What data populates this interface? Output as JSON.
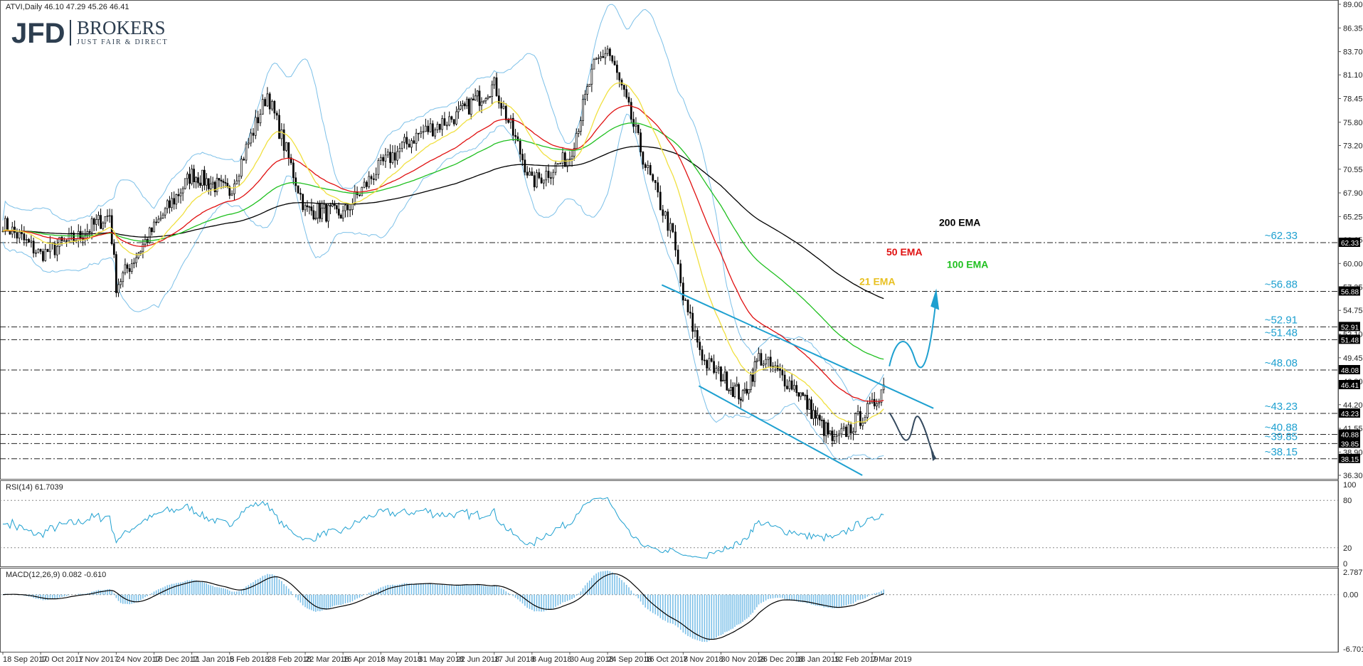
{
  "header": {
    "main": "ATVI,Daily  46.10 47.29 45.26 46.41",
    "rsi": "RSI(14) 61.7039",
    "macd": "MACD(12,26,9) 0.082 -0.610"
  },
  "logo": {
    "jfd": "JFD",
    "brokers": "BROKERS",
    "tagline": "JUST FAIR & DIRECT"
  },
  "colors": {
    "up_candle": "#ffffff",
    "down_candle": "#000000",
    "ema21": "#f0e040",
    "ema50": "#e01010",
    "ema100": "#20c020",
    "ema200": "#000000",
    "bollinger": "#7cc0e8",
    "channel": "#1ea0d0",
    "projection_up": "#1ea0d0",
    "projection_down": "#34495e",
    "macd_hist": "#7cc0e8"
  },
  "chart_data": [
    {
      "type": "candlestick",
      "ylim": [
        36.3,
        89.0
      ],
      "y_ticks": [
        "89.00",
        "86.35",
        "83.70",
        "81.10",
        "78.45",
        "75.80",
        "73.20",
        "70.55",
        "67.90",
        "65.25",
        "62.65",
        "60.00",
        "57.35",
        "54.75",
        "52.10",
        "49.45",
        "46.80",
        "44.20",
        "41.55",
        "38.90",
        "36.30"
      ],
      "x_dates": [
        "18 Sep 2017",
        "10 Oct 2017",
        "1 Nov 2017",
        "24 Nov 2017",
        "18 Dec 2017",
        "11 Jan 2018",
        "5 Feb 2018",
        "28 Feb 2018",
        "22 Mar 2018",
        "16 Apr 2018",
        "8 May 2018",
        "31 May 2018",
        "22 Jun 2018",
        "17 Jul 2018",
        "8 Aug 2018",
        "30 Aug 2018",
        "24 Sep 2018",
        "16 Oct 2018",
        "7 Nov 2018",
        "30 Nov 2018",
        "26 Dec 2018",
        "18 Jan 2019",
        "12 Feb 2019",
        "7 Mar 2019"
      ],
      "price_path": [
        {
          "date": "18 Sep 2017",
          "close": 64.5
        },
        {
          "date": "10 Oct 2017",
          "close": 61.0
        },
        {
          "date": "1 Nov 2017",
          "close": 63.0
        },
        {
          "date": "20 Nov 2017",
          "close": 65.5
        },
        {
          "date": "24 Nov 2017",
          "close": 57.5
        },
        {
          "date": "18 Dec 2017",
          "close": 64.0
        },
        {
          "date": "11 Jan 2018",
          "close": 70.0
        },
        {
          "date": "5 Feb 2018",
          "close": 68.0
        },
        {
          "date": "28 Feb 2018",
          "close": 79.0
        },
        {
          "date": "22 Mar 2018",
          "close": 66.0
        },
        {
          "date": "16 Apr 2018",
          "close": 65.5
        },
        {
          "date": "8 May 2018",
          "close": 71.0
        },
        {
          "date": "31 May 2018",
          "close": 74.5
        },
        {
          "date": "22 Jun 2018",
          "close": 76.5
        },
        {
          "date": "17 Jul 2018",
          "close": 80.0
        },
        {
          "date": "8 Aug 2018",
          "close": 69.0
        },
        {
          "date": "30 Aug 2018",
          "close": 72.0
        },
        {
          "date": "15 Sep 2018",
          "close": 82.0
        },
        {
          "date": "24 Sep 2018",
          "close": 84.0
        },
        {
          "date": "5 Oct 2018",
          "close": 78.0
        },
        {
          "date": "16 Oct 2018",
          "close": 71.0
        },
        {
          "date": "1 Nov 2018",
          "close": 63.0
        },
        {
          "date": "7 Nov 2018",
          "close": 56.0
        },
        {
          "date": "20 Nov 2018",
          "close": 49.0
        },
        {
          "date": "30 Nov 2018",
          "close": 47.5
        },
        {
          "date": "15 Dec 2018",
          "close": 45.0
        },
        {
          "date": "26 Dec 2018",
          "close": 49.5
        },
        {
          "date": "18 Jan 2019",
          "close": 46.0
        },
        {
          "date": "1 Feb 2019",
          "close": 42.5
        },
        {
          "date": "12 Feb 2019",
          "close": 40.0
        },
        {
          "date": "7 Mar 2019",
          "close": 44.0
        },
        {
          "date": "14 Mar 2019",
          "close": 46.41
        }
      ],
      "levels": [
        {
          "label": "~62.33",
          "value": 62.33,
          "box": "62.33"
        },
        {
          "label": "~56.88",
          "value": 56.88,
          "box": "56.88"
        },
        {
          "label": "~52.91",
          "value": 52.91,
          "box": "52.91"
        },
        {
          "label": "~51.48",
          "value": 51.48,
          "box": "51.48"
        },
        {
          "label": "~48.08",
          "value": 48.08,
          "box": "48.08"
        },
        {
          "label": "~43.23",
          "value": 43.23,
          "box": "43.23"
        },
        {
          "label": "~40.88",
          "value": 40.88,
          "box": "40.88"
        },
        {
          "label": "~39.85",
          "value": 39.85,
          "box": "39.85"
        },
        {
          "label": "~38.15",
          "value": 38.15,
          "box": "38.15"
        }
      ],
      "current_price": {
        "value": 46.41,
        "box": "46.41"
      },
      "ema_labels": {
        "ema200": "200 EMA",
        "ema50": "50 EMA",
        "ema100": "100 EMA",
        "ema21": "21 EMA"
      }
    },
    {
      "type": "line",
      "name": "RSI(14)",
      "value": 61.7039,
      "ylim": [
        0,
        100
      ],
      "y_ticks": [
        "100",
        "80",
        "20",
        "0"
      ]
    },
    {
      "type": "bar",
      "name": "MACD(12,26,9)",
      "ylim": [
        -6.701,
        2.787
      ],
      "y_ticks": [
        "2.787",
        "0.00",
        "-6.701"
      ]
    }
  ]
}
